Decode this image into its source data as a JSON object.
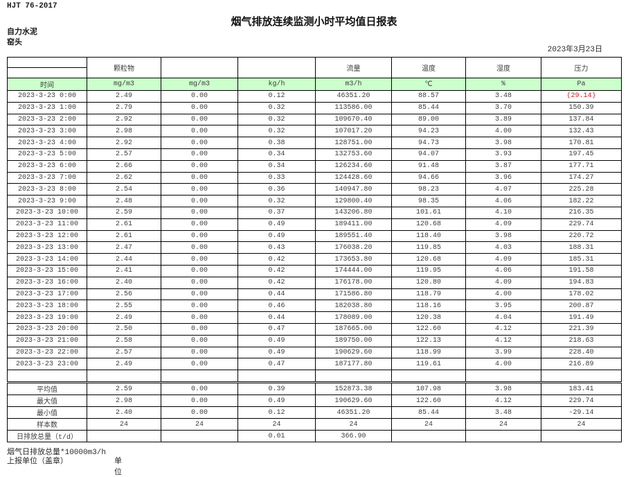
{
  "meta": {
    "standard": "HJT  76-2017",
    "title": "烟气排放连续监测小时平均值日报表",
    "company": "自力水泥",
    "location": "窑头",
    "date": "2023年3月23日"
  },
  "table": {
    "header_groups": [
      "",
      "颗粒物",
      "",
      "",
      "流量",
      "温度",
      "湿度",
      "压力"
    ],
    "unit_row": [
      "时间",
      "mg/m3",
      "mg/m3",
      "kg/h",
      "m3/h",
      "℃",
      "%",
      "Pa"
    ],
    "rows": [
      [
        "2023-3-23 0:00",
        "2.49",
        "0.00",
        "0.12",
        "46351.20",
        "88.57",
        "3.48",
        "(29.14)"
      ],
      [
        "2023-3-23 1:00",
        "2.79",
        "0.00",
        "0.32",
        "113586.00",
        "85.44",
        "3.70",
        "150.39"
      ],
      [
        "2023-3-23 2:00",
        "2.92",
        "0.00",
        "0.32",
        "109670.40",
        "89.00",
        "3.89",
        "137.84"
      ],
      [
        "2023-3-23 3:00",
        "2.98",
        "0.00",
        "0.32",
        "107017.20",
        "94.23",
        "4.00",
        "132.43"
      ],
      [
        "2023-3-23 4:00",
        "2.92",
        "0.00",
        "0.38",
        "128751.00",
        "94.73",
        "3.98",
        "170.81"
      ],
      [
        "2023-3-23 5:00",
        "2.57",
        "0.00",
        "0.34",
        "132753.60",
        "94.07",
        "3.93",
        "197.45"
      ],
      [
        "2023-3-23 6:00",
        "2.66",
        "0.00",
        "0.34",
        "126234.60",
        "91.48",
        "3.87",
        "177.71"
      ],
      [
        "2023-3-23 7:00",
        "2.62",
        "0.00",
        "0.33",
        "124428.60",
        "94.66",
        "3.96",
        "174.27"
      ],
      [
        "2023-3-23 8:00",
        "2.54",
        "0.00",
        "0.36",
        "140947.80",
        "98.23",
        "4.07",
        "225.28"
      ],
      [
        "2023-3-23 9:00",
        "2.48",
        "0.00",
        "0.32",
        "129800.40",
        "98.35",
        "4.06",
        "182.22"
      ],
      [
        "2023-3-23 10:00",
        "2.59",
        "0.00",
        "0.37",
        "143206.80",
        "101.61",
        "4.10",
        "216.35"
      ],
      [
        "2023-3-23 11:00",
        "2.61",
        "0.00",
        "0.49",
        "189411.00",
        "120.68",
        "4.09",
        "229.74"
      ],
      [
        "2023-3-23 12:00",
        "2.61",
        "0.00",
        "0.49",
        "189551.40",
        "118.40",
        "3.98",
        "220.72"
      ],
      [
        "2023-3-23 13:00",
        "2.47",
        "0.00",
        "0.43",
        "176038.20",
        "119.85",
        "4.03",
        "188.31"
      ],
      [
        "2023-3-23 14:00",
        "2.44",
        "0.00",
        "0.42",
        "173653.80",
        "120.68",
        "4.09",
        "185.31"
      ],
      [
        "2023-3-23 15:00",
        "2.41",
        "0.00",
        "0.42",
        "174444.00",
        "119.95",
        "4.06",
        "191.58"
      ],
      [
        "2023-3-23 16:00",
        "2.40",
        "0.00",
        "0.42",
        "176178.00",
        "120.80",
        "4.09",
        "194.83"
      ],
      [
        "2023-3-23 17:00",
        "2.56",
        "0.00",
        "0.44",
        "171586.80",
        "118.79",
        "4.00",
        "178.02"
      ],
      [
        "2023-3-23 18:00",
        "2.55",
        "0.00",
        "0.46",
        "182038.80",
        "118.16",
        "3.95",
        "200.87"
      ],
      [
        "2023-3-23 19:00",
        "2.49",
        "0.00",
        "0.44",
        "178089.00",
        "120.38",
        "4.04",
        "191.49"
      ],
      [
        "2023-3-23 20:00",
        "2.50",
        "0.00",
        "0.47",
        "187665.00",
        "122.60",
        "4.12",
        "221.39"
      ],
      [
        "2023-3-23 21:00",
        "2.58",
        "0.00",
        "0.49",
        "189750.00",
        "122.13",
        "4.12",
        "218.63"
      ],
      [
        "2023-3-23 22:00",
        "2.57",
        "0.00",
        "0.49",
        "190629.60",
        "118.99",
        "3.99",
        "228.40"
      ],
      [
        "2023-3-23 23:00",
        "2.49",
        "0.00",
        "0.47",
        "187177.80",
        "119.61",
        "4.00",
        "216.89"
      ]
    ],
    "summary": [
      [
        "平均值",
        "2.59",
        "0.00",
        "0.39",
        "152873.38",
        "107.98",
        "3.98",
        "183.41"
      ],
      [
        "最大值",
        "2.98",
        "0.00",
        "0.49",
        "190629.60",
        "122.60",
        "4.12",
        "229.74"
      ],
      [
        "最小值",
        "2.40",
        "0.00",
        "0.12",
        "46351.20",
        "85.44",
        "3.48",
        "-29.14"
      ],
      [
        "样本数",
        "24",
        "24",
        "24",
        "24",
        "24",
        "24",
        "24"
      ],
      [
        "日排放总量（t/d）",
        "",
        "",
        "0.01",
        "366.90",
        "",
        "",
        ""
      ]
    ]
  },
  "footer": {
    "note": "烟气日排放总量*10000m3/h",
    "report_unit": "上报单位（盖章）",
    "unit_label": "单位"
  },
  "colors": {
    "header_green": "#ccffcc",
    "negative_red": "#cc2020"
  }
}
